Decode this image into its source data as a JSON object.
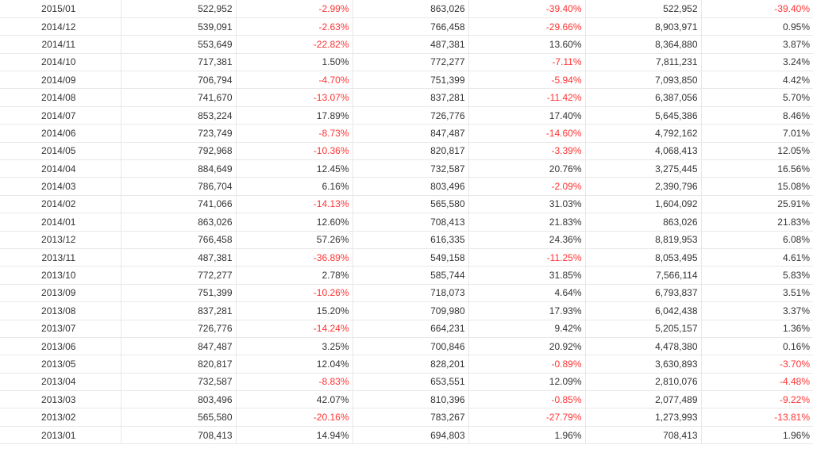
{
  "colors": {
    "negative": "#ff3333",
    "positive": "#333333",
    "border": "#e8e8e8"
  },
  "rows": [
    {
      "date": "2015/01",
      "v1": "522,952",
      "p1": "-2.99%",
      "v2": "863,026",
      "p2": "-39.40%",
      "v3": "522,952",
      "p3": "-39.40%"
    },
    {
      "date": "2014/12",
      "v1": "539,091",
      "p1": "-2.63%",
      "v2": "766,458",
      "p2": "-29.66%",
      "v3": "8,903,971",
      "p3": "0.95%"
    },
    {
      "date": "2014/11",
      "v1": "553,649",
      "p1": "-22.82%",
      "v2": "487,381",
      "p2": "13.60%",
      "v3": "8,364,880",
      "p3": "3.87%"
    },
    {
      "date": "2014/10",
      "v1": "717,381",
      "p1": "1.50%",
      "v2": "772,277",
      "p2": "-7.11%",
      "v3": "7,811,231",
      "p3": "3.24%"
    },
    {
      "date": "2014/09",
      "v1": "706,794",
      "p1": "-4.70%",
      "v2": "751,399",
      "p2": "-5.94%",
      "v3": "7,093,850",
      "p3": "4.42%"
    },
    {
      "date": "2014/08",
      "v1": "741,670",
      "p1": "-13.07%",
      "v2": "837,281",
      "p2": "-11.42%",
      "v3": "6,387,056",
      "p3": "5.70%"
    },
    {
      "date": "2014/07",
      "v1": "853,224",
      "p1": "17.89%",
      "v2": "726,776",
      "p2": "17.40%",
      "v3": "5,645,386",
      "p3": "8.46%"
    },
    {
      "date": "2014/06",
      "v1": "723,749",
      "p1": "-8.73%",
      "v2": "847,487",
      "p2": "-14.60%",
      "v3": "4,792,162",
      "p3": "7.01%"
    },
    {
      "date": "2014/05",
      "v1": "792,968",
      "p1": "-10.36%",
      "v2": "820,817",
      "p2": "-3.39%",
      "v3": "4,068,413",
      "p3": "12.05%"
    },
    {
      "date": "2014/04",
      "v1": "884,649",
      "p1": "12.45%",
      "v2": "732,587",
      "p2": "20.76%",
      "v3": "3,275,445",
      "p3": "16.56%"
    },
    {
      "date": "2014/03",
      "v1": "786,704",
      "p1": "6.16%",
      "v2": "803,496",
      "p2": "-2.09%",
      "v3": "2,390,796",
      "p3": "15.08%"
    },
    {
      "date": "2014/02",
      "v1": "741,066",
      "p1": "-14.13%",
      "v2": "565,580",
      "p2": "31.03%",
      "v3": "1,604,092",
      "p3": "25.91%"
    },
    {
      "date": "2014/01",
      "v1": "863,026",
      "p1": "12.60%",
      "v2": "708,413",
      "p2": "21.83%",
      "v3": "863,026",
      "p3": "21.83%"
    },
    {
      "date": "2013/12",
      "v1": "766,458",
      "p1": "57.26%",
      "v2": "616,335",
      "p2": "24.36%",
      "v3": "8,819,953",
      "p3": "6.08%"
    },
    {
      "date": "2013/11",
      "v1": "487,381",
      "p1": "-36.89%",
      "v2": "549,158",
      "p2": "-11.25%",
      "v3": "8,053,495",
      "p3": "4.61%"
    },
    {
      "date": "2013/10",
      "v1": "772,277",
      "p1": "2.78%",
      "v2": "585,744",
      "p2": "31.85%",
      "v3": "7,566,114",
      "p3": "5.83%"
    },
    {
      "date": "2013/09",
      "v1": "751,399",
      "p1": "-10.26%",
      "v2": "718,073",
      "p2": "4.64%",
      "v3": "6,793,837",
      "p3": "3.51%"
    },
    {
      "date": "2013/08",
      "v1": "837,281",
      "p1": "15.20%",
      "v2": "709,980",
      "p2": "17.93%",
      "v3": "6,042,438",
      "p3": "3.37%"
    },
    {
      "date": "2013/07",
      "v1": "726,776",
      "p1": "-14.24%",
      "v2": "664,231",
      "p2": "9.42%",
      "v3": "5,205,157",
      "p3": "1.36%"
    },
    {
      "date": "2013/06",
      "v1": "847,487",
      "p1": "3.25%",
      "v2": "700,846",
      "p2": "20.92%",
      "v3": "4,478,380",
      "p3": "0.16%"
    },
    {
      "date": "2013/05",
      "v1": "820,817",
      "p1": "12.04%",
      "v2": "828,201",
      "p2": "-0.89%",
      "v3": "3,630,893",
      "p3": "-3.70%"
    },
    {
      "date": "2013/04",
      "v1": "732,587",
      "p1": "-8.83%",
      "v2": "653,551",
      "p2": "12.09%",
      "v3": "2,810,076",
      "p3": "-4.48%"
    },
    {
      "date": "2013/03",
      "v1": "803,496",
      "p1": "42.07%",
      "v2": "810,396",
      "p2": "-0.85%",
      "v3": "2,077,489",
      "p3": "-9.22%"
    },
    {
      "date": "2013/02",
      "v1": "565,580",
      "p1": "-20.16%",
      "v2": "783,267",
      "p2": "-27.79%",
      "v3": "1,273,993",
      "p3": "-13.81%"
    },
    {
      "date": "2013/01",
      "v1": "708,413",
      "p1": "14.94%",
      "v2": "694,803",
      "p2": "1.96%",
      "v3": "708,413",
      "p3": "1.96%"
    }
  ]
}
